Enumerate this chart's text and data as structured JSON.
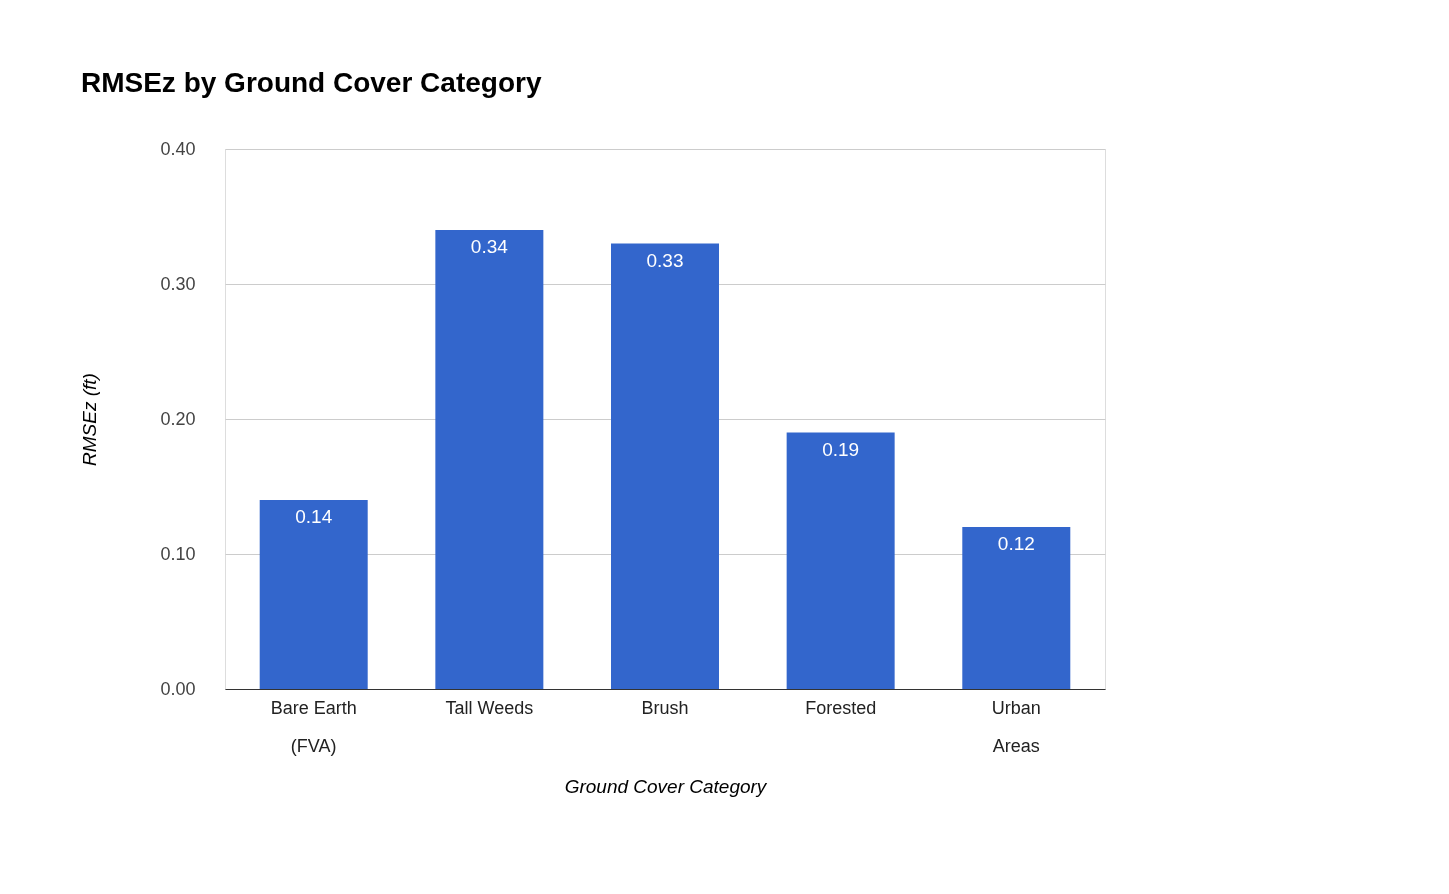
{
  "chart_data": {
    "type": "bar",
    "title": "RMSEz by Ground Cover Category",
    "xlabel": "Ground Cover Category",
    "ylabel": "RMSEz (ft)",
    "categories": [
      "Bare Earth\n(FVA)",
      "Tall Weeds",
      "Brush",
      "Forested",
      "Urban\nAreas"
    ],
    "values": [
      0.14,
      0.34,
      0.33,
      0.19,
      0.12
    ],
    "color": "#3366cc",
    "ylim": [
      0,
      0.4
    ],
    "yticks": [
      {
        "value": 0,
        "label": "0.00"
      },
      {
        "value": 0.1,
        "label": "0.10"
      },
      {
        "value": 0.2,
        "label": "0.20"
      },
      {
        "value": 0.3,
        "label": "0.30"
      },
      {
        "value": 0.4,
        "label": "0.40"
      }
    ],
    "grid": "y",
    "data_labels": true
  }
}
